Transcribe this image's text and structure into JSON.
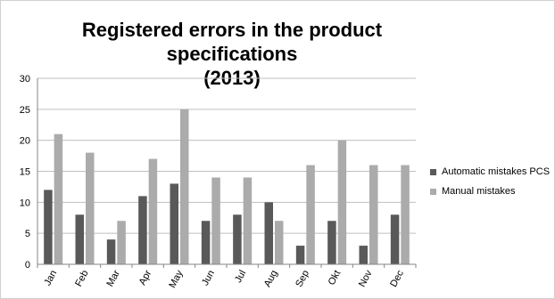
{
  "chart_data": {
    "type": "bar",
    "title": "Registered errors in the product specifications (2013)",
    "title_line1": "Registered errors in the product specifications",
    "title_line2": "(2013)",
    "categories": [
      "Jan",
      "Feb",
      "Mar",
      "Apr",
      "May",
      "Jun",
      "Jul",
      "Aug",
      "Sep",
      "Okt",
      "Nov",
      "Dec"
    ],
    "series": [
      {
        "name": "Automatic mistakes PCS",
        "color": "#595959",
        "values": [
          12,
          8,
          4,
          11,
          13,
          7,
          8,
          10,
          3,
          7,
          3,
          8
        ]
      },
      {
        "name": "Manual mistakes",
        "color": "#ababab",
        "values": [
          21,
          18,
          7,
          17,
          25,
          14,
          14,
          7,
          16,
          20,
          16,
          16
        ]
      }
    ],
    "xlabel": "",
    "ylabel": "",
    "ylim": [
      0,
      30
    ],
    "yticks": [
      0,
      5,
      10,
      15,
      20,
      25,
      30
    ],
    "grid": true,
    "legend_position": "right"
  }
}
